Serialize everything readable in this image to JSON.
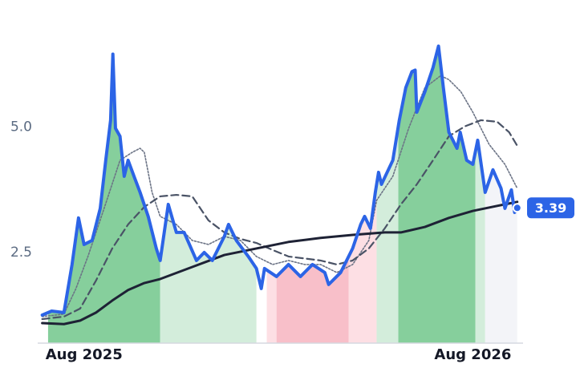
{
  "chart_data": {
    "type": "line",
    "xlim": [
      -1.43,
      13.5
    ],
    "ylim": [
      0.69,
      6.9
    ],
    "xticks": [
      {
        "value": 0,
        "label": "Aug 2025"
      },
      {
        "value": 12,
        "label": "Aug 2026"
      }
    ],
    "yticks": [
      2.5,
      {
        "value": 5,
        "label": "5.0"
      }
    ],
    "grid": false,
    "bands": [
      {
        "x": [
          -1.11,
          2.35
        ],
        "color": "#86cf9c"
      },
      {
        "x": [
          2.35,
          5.32
        ],
        "color": "#d3eddb"
      },
      {
        "x": [
          5.64,
          5.94
        ],
        "color": "#fddfe4"
      },
      {
        "x": [
          5.94,
          8.17
        ],
        "color": "#f8bfc9"
      },
      {
        "x": [
          8.17,
          9.03
        ],
        "color": "#fddfe4"
      },
      {
        "x": [
          9.03,
          9.7
        ],
        "color": "#d3eddb"
      },
      {
        "x": [
          9.7,
          12.08
        ],
        "color": "#86cf9c"
      },
      {
        "x": [
          12.08,
          12.38
        ],
        "color": "#d3eddb"
      },
      {
        "x": [
          12.38,
          13.37
        ],
        "color": "#f3f4f8"
      }
    ],
    "series": [
      {
        "color": "#2c64e6",
        "width": 4,
        "dash": "none",
        "x": [
          -1.29,
          -1.0,
          -0.62,
          -0.37,
          -0.17,
          0,
          0.25,
          0.5,
          0.67,
          0.82,
          0.89,
          0.97,
          1.11,
          1.24,
          1.36,
          1.56,
          1.73,
          1.98,
          2.23,
          2.35,
          2.6,
          2.85,
          3.09,
          3.47,
          3.71,
          3.96,
          4.33,
          4.46,
          4.7,
          5.07,
          5.32,
          5.47,
          5.57,
          5.94,
          6.31,
          6.68,
          7.05,
          7.43,
          7.55,
          7.92,
          8.29,
          8.54,
          8.66,
          8.84,
          8.99,
          9.09,
          9.18,
          9.53,
          9.73,
          9.93,
          10.12,
          10.22,
          10.27,
          10.52,
          10.77,
          10.94,
          11.09,
          11.26,
          11.51,
          11.61,
          11.81,
          12.0,
          12.15,
          12.38,
          12.62,
          12.87,
          12.99,
          13.19,
          13.29,
          13.37
        ],
        "values": [
          1.25,
          1.33,
          1.3,
          2.26,
          3.19,
          2.66,
          2.74,
          3.38,
          4.34,
          5.14,
          6.46,
          4.98,
          4.82,
          4.02,
          4.34,
          3.99,
          3.7,
          3.22,
          2.58,
          2.34,
          3.46,
          2.9,
          2.9,
          2.34,
          2.5,
          2.34,
          2.82,
          3.06,
          2.74,
          2.42,
          2.18,
          1.78,
          2.18,
          2.02,
          2.26,
          2.02,
          2.26,
          2.1,
          1.86,
          2.1,
          2.58,
          3.06,
          3.22,
          2.98,
          3.7,
          4.1,
          3.86,
          4.34,
          5.14,
          5.79,
          6.11,
          6.14,
          5.3,
          5.71,
          6.19,
          6.62,
          5.79,
          4.9,
          4.58,
          4.9,
          4.34,
          4.26,
          4.74,
          3.7,
          4.15,
          3.78,
          3.38,
          3.75,
          3.3,
          3.39
        ]
      },
      {
        "color": "#1e2235",
        "width": 3,
        "dash": "none",
        "x": [
          -1.29,
          -0.62,
          -0.12,
          0.37,
          0.87,
          1.36,
          1.86,
          2.35,
          3.34,
          4.33,
          5.32,
          6.31,
          7.3,
          8.29,
          9.28,
          9.78,
          10.52,
          11.26,
          12.0,
          12.75,
          13.37
        ],
        "values": [
          1.09,
          1.07,
          1.14,
          1.3,
          1.54,
          1.75,
          1.89,
          1.97,
          2.21,
          2.45,
          2.58,
          2.71,
          2.79,
          2.85,
          2.9,
          2.9,
          3.01,
          3.19,
          3.33,
          3.43,
          3.51
        ]
      },
      {
        "color": "#4a5366",
        "width": 2.2,
        "dash": "9 5",
        "x": [
          -1.29,
          -0.62,
          -0.12,
          0.37,
          0.87,
          1.36,
          1.86,
          2.35,
          2.85,
          3.34,
          3.84,
          4.33,
          4.83,
          5.32,
          5.82,
          6.31,
          7.3,
          7.8,
          8.29,
          8.79,
          9.28,
          9.78,
          10.27,
          10.77,
          11.26,
          11.76,
          12.25,
          12.75,
          13.12,
          13.37
        ],
        "values": [
          1.17,
          1.22,
          1.38,
          1.94,
          2.58,
          3.06,
          3.41,
          3.62,
          3.65,
          3.62,
          3.14,
          2.9,
          2.77,
          2.69,
          2.55,
          2.42,
          2.34,
          2.26,
          2.34,
          2.58,
          2.98,
          3.46,
          3.86,
          4.34,
          4.82,
          5.02,
          5.14,
          5.11,
          4.9,
          4.63
        ]
      },
      {
        "color": "#6b7385",
        "width": 1.6,
        "dash": "2 2",
        "x": [
          -1.29,
          -0.62,
          -0.25,
          0.12,
          0.62,
          1.11,
          1.49,
          1.73,
          1.86,
          2.1,
          2.35,
          2.85,
          3.34,
          3.84,
          4.33,
          4.83,
          5.32,
          5.82,
          6.31,
          6.81,
          7.3,
          7.8,
          8.29,
          8.79,
          9.03,
          9.53,
          10.02,
          10.52,
          11.01,
          11.26,
          11.63,
          12.0,
          12.5,
          12.99,
          13.37
        ],
        "values": [
          1.22,
          1.27,
          1.78,
          2.42,
          3.38,
          4.34,
          4.5,
          4.58,
          4.5,
          3.7,
          3.22,
          3.06,
          2.74,
          2.66,
          2.82,
          2.74,
          2.42,
          2.26,
          2.34,
          2.26,
          2.26,
          2.1,
          2.26,
          2.74,
          3.54,
          4.02,
          4.98,
          5.79,
          6.03,
          5.95,
          5.71,
          5.3,
          4.66,
          4.26,
          3.78
        ]
      }
    ]
  }
}
